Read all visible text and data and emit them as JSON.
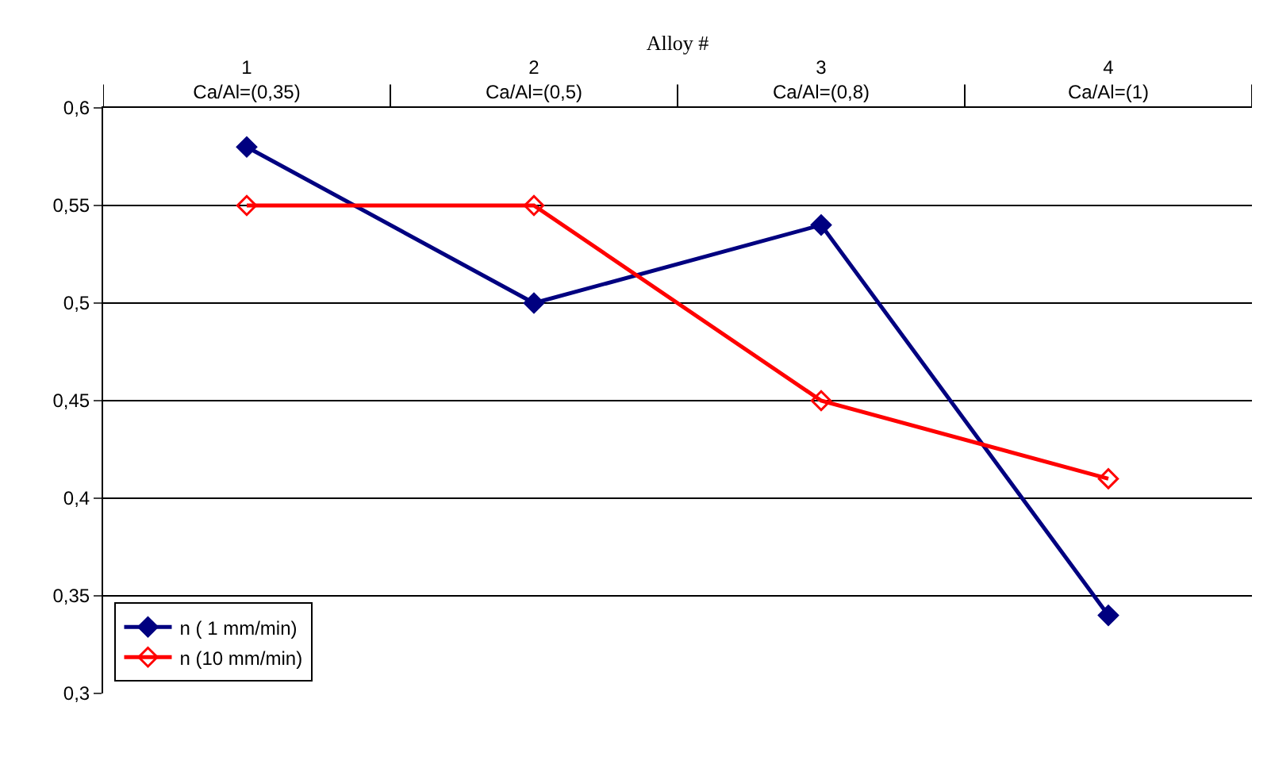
{
  "chart_data": {
    "type": "line",
    "xlabel": "Alloy #",
    "categories": [
      "1\nCa/Al=(0,35)",
      "2\nCa/Al=(0,5)",
      "3\nCa/Al=(0,8)",
      "4\nCa/Al=(1)"
    ],
    "series": [
      {
        "name": "n ( 1 mm/min)",
        "color": "#000080",
        "marker": "diamond",
        "values": [
          0.58,
          0.5,
          0.54,
          0.34
        ]
      },
      {
        "name": "n (10 mm/min)",
        "color": "#ff0000",
        "marker": "diamond-open",
        "values": [
          0.55,
          0.55,
          0.45,
          0.41
        ]
      }
    ],
    "ylim": [
      0.3,
      0.6
    ],
    "yticks": [
      {
        "value": 0.3,
        "label": "0,3"
      },
      {
        "value": 0.35,
        "label": "0,35"
      },
      {
        "value": 0.4,
        "label": "0,4"
      },
      {
        "value": 0.45,
        "label": "0,45"
      },
      {
        "value": 0.5,
        "label": "0,5"
      },
      {
        "value": 0.55,
        "label": "0,55"
      },
      {
        "value": 0.6,
        "label": "0,6"
      }
    ],
    "grid": "y",
    "legend": "bottom left",
    "line_style": "solid"
  }
}
